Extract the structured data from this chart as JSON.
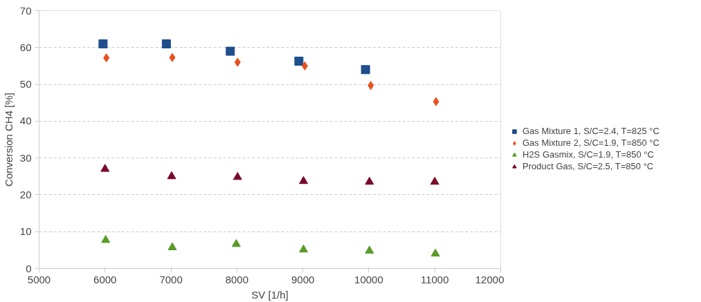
{
  "chart_data": {
    "type": "scatter",
    "xlabel": "SV [1/h]",
    "ylabel": "Conversion CH4 [%]",
    "xlim": [
      5000,
      12000
    ],
    "xticks": [
      5000,
      6000,
      7000,
      8000,
      9000,
      10000,
      11000,
      12000
    ],
    "ylim": [
      0,
      70
    ],
    "yticks": [
      0,
      10,
      20,
      30,
      40,
      50,
      60,
      70
    ],
    "grid": "y",
    "legend": "right",
    "series": [
      {
        "name": "Gas Mixture 1, S/C=2.4, T=825 °C",
        "color": "#1f4e8c",
        "marker": "square",
        "x": [
          5970,
          6930,
          7900,
          8940,
          9950
        ],
        "values": [
          61,
          61,
          59,
          56.3,
          54
        ]
      },
      {
        "name": "Gas Mixture 2, S/C=1.9, T=850 °C",
        "color": "#e8501e",
        "marker": "diamond",
        "x": [
          6020,
          7020,
          8010,
          9030,
          10030,
          11020
        ],
        "values": [
          57.2,
          57.3,
          56,
          55,
          49.7,
          45.3
        ]
      },
      {
        "name": "H2S Gasmix, S/C=1.9, T=850 °C",
        "color": "#5a9a28",
        "marker": "triangle",
        "x": [
          6010,
          7020,
          7990,
          9010,
          10010,
          11010
        ],
        "values": [
          7.7,
          5.7,
          6.6,
          5.1,
          4.8,
          4.0
        ]
      },
      {
        "name": "Product Gas, S/C=2.5, T=850 °C",
        "color": "#7a0a2a",
        "marker": "triangle",
        "x": [
          6000,
          7010,
          8010,
          9010,
          10010,
          11000
        ],
        "values": [
          27,
          25,
          24.8,
          23.7,
          23.5,
          23.5
        ]
      }
    ]
  }
}
